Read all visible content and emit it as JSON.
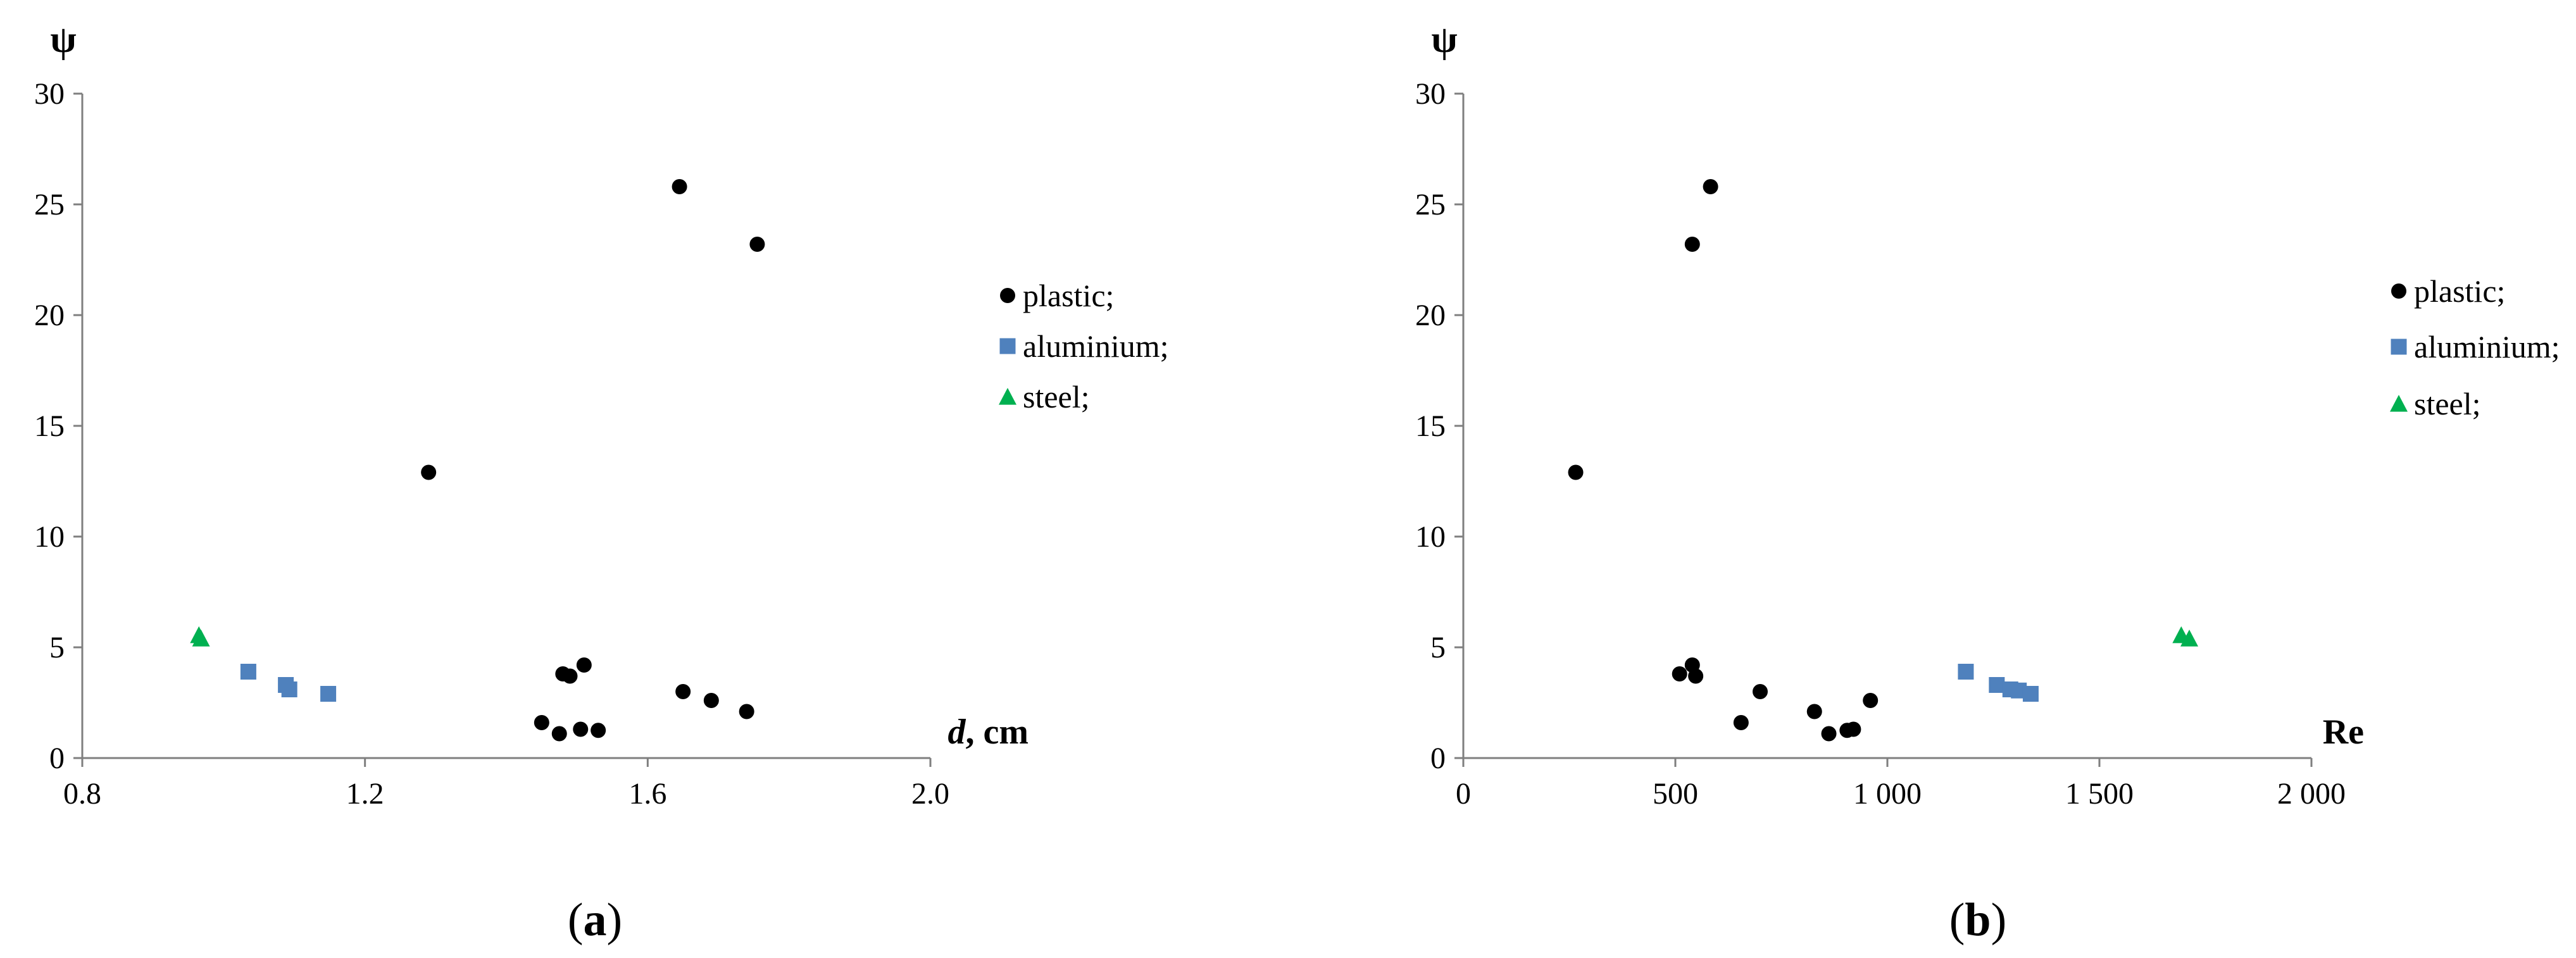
{
  "colors": {
    "plastic": "#000000",
    "aluminium": "#4f81bd",
    "steel": "#00b050",
    "axis": "#7f7f7f"
  },
  "chart_data": [
    {
      "type": "scatter",
      "panel_label": "a",
      "ylabel": "ψ",
      "xlabel_italic": "d",
      "xlabel_rest": ", cm",
      "xlim": [
        0.8,
        2.0
      ],
      "ylim": [
        0,
        30
      ],
      "xticks": [
        0.8,
        1.2,
        1.6,
        2.0
      ],
      "xtick_labels": [
        "0.8",
        "1.2",
        "1.6",
        "2.0"
      ],
      "yticks": [
        0,
        5,
        10,
        15,
        20,
        25,
        30
      ],
      "ytick_labels": [
        "0",
        "5",
        "10",
        "15",
        "20",
        "25",
        "30"
      ],
      "grid": false,
      "legend_position": "right",
      "series": [
        {
          "name": "plastic;",
          "marker": "circle",
          "points": [
            {
              "x": 1.29,
              "y": 12.9
            },
            {
              "x": 1.645,
              "y": 25.8
            },
            {
              "x": 1.755,
              "y": 23.2
            },
            {
              "x": 1.48,
              "y": 3.8
            },
            {
              "x": 1.49,
              "y": 3.7
            },
            {
              "x": 1.51,
              "y": 4.2
            },
            {
              "x": 1.45,
              "y": 1.6
            },
            {
              "x": 1.475,
              "y": 1.1
            },
            {
              "x": 1.505,
              "y": 1.3
            },
            {
              "x": 1.53,
              "y": 1.25
            },
            {
              "x": 1.65,
              "y": 3.0
            },
            {
              "x": 1.69,
              "y": 2.6
            },
            {
              "x": 1.74,
              "y": 2.1
            }
          ]
        },
        {
          "name": "aluminium;",
          "marker": "square",
          "points": [
            {
              "x": 1.035,
              "y": 3.9
            },
            {
              "x": 1.088,
              "y": 3.3
            },
            {
              "x": 1.093,
              "y": 3.1
            },
            {
              "x": 1.148,
              "y": 2.9
            }
          ]
        },
        {
          "name": "steel;",
          "marker": "triangle",
          "points": [
            {
              "x": 0.965,
              "y": 5.55
            },
            {
              "x": 0.968,
              "y": 5.4
            }
          ]
        }
      ]
    },
    {
      "type": "scatter",
      "panel_label": "b",
      "ylabel": "ψ",
      "xlabel_italic": "",
      "xlabel_rest": "Re",
      "xlim": [
        0,
        2000
      ],
      "ylim": [
        0,
        30
      ],
      "xticks": [
        0,
        500,
        1000,
        1500,
        2000
      ],
      "xtick_labels": [
        "0",
        "500",
        "1 000",
        "1 500",
        "2 000"
      ],
      "yticks": [
        0,
        5,
        10,
        15,
        20,
        25,
        30
      ],
      "ytick_labels": [
        "0",
        "5",
        "10",
        "15",
        "20",
        "25",
        "30"
      ],
      "grid": false,
      "legend_position": "right",
      "series": [
        {
          "name": "plastic;",
          "marker": "circle",
          "points": [
            {
              "x": 265,
              "y": 12.9
            },
            {
              "x": 583,
              "y": 25.8
            },
            {
              "x": 540,
              "y": 23.2
            },
            {
              "x": 510,
              "y": 3.8
            },
            {
              "x": 540,
              "y": 4.2
            },
            {
              "x": 548,
              "y": 3.7
            },
            {
              "x": 655,
              "y": 1.6
            },
            {
              "x": 700,
              "y": 3.0
            },
            {
              "x": 828,
              "y": 2.1
            },
            {
              "x": 862,
              "y": 1.1
            },
            {
              "x": 905,
              "y": 1.25
            },
            {
              "x": 920,
              "y": 1.3
            },
            {
              "x": 960,
              "y": 2.6
            }
          ]
        },
        {
          "name": "aluminium;",
          "marker": "square",
          "points": [
            {
              "x": 1185,
              "y": 3.9
            },
            {
              "x": 1258,
              "y": 3.3
            },
            {
              "x": 1290,
              "y": 3.1
            },
            {
              "x": 1310,
              "y": 3.05
            },
            {
              "x": 1338,
              "y": 2.9
            }
          ]
        },
        {
          "name": "steel;",
          "marker": "triangle",
          "points": [
            {
              "x": 1693,
              "y": 5.55
            },
            {
              "x": 1712,
              "y": 5.4
            }
          ]
        }
      ]
    }
  ]
}
